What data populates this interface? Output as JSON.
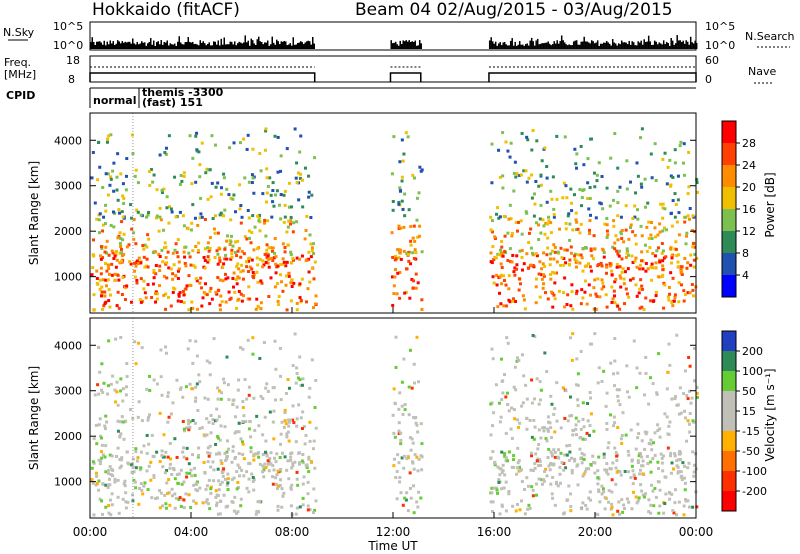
{
  "header": {
    "station": "Hokkaido (fitACF)",
    "beam_info": "Beam 04 02/Aug/2015 - 03/Aug/2015"
  },
  "top_panels": {
    "nsky_label": "N.Sky",
    "nsky_top_tick": "10^5",
    "nsky_bottom_tick": "10^0",
    "nsearch_label": "N.Search",
    "nsearch_top_tick": "10^5",
    "nsearch_bottom_tick": "10^0",
    "freq_label_line1": "Freq.",
    "freq_label_line2": "[MHz]",
    "freq_top_tick": "18",
    "freq_bottom_tick": "8",
    "nave_label": "Nave",
    "nave_top_tick": "60",
    "nave_bottom_tick": "0",
    "cpid_label": "CPID",
    "cpid_mode_1": "normal",
    "cpid_mode_2_line1": "themis -3300",
    "cpid_mode_2_line2": "(fast) 151"
  },
  "axes": {
    "x_label": "Time UT",
    "x_ticks": [
      "00:00",
      "04:00",
      "08:00",
      "12:00",
      "16:00",
      "20:00",
      "00:00"
    ],
    "y_label": "Slant Range [km]",
    "y_ticks": [
      "1000",
      "2000",
      "3000",
      "4000"
    ]
  },
  "colorbars": {
    "power": {
      "label": "Power [dB]",
      "ticks": [
        "4",
        "8",
        "12",
        "16",
        "20",
        "24",
        "28"
      ],
      "colors": [
        "#0000ff",
        "#2050b0",
        "#2e8b57",
        "#7cc050",
        "#f0c000",
        "#ff8c00",
        "#ff4000",
        "#ff0000"
      ]
    },
    "velocity": {
      "label": "Velocity [m s⁻¹]",
      "ticks": [
        "200",
        "100",
        "50",
        "15",
        "-15",
        "-50",
        "-100",
        "-200"
      ],
      "colors": [
        "#2040c0",
        "#2e8b57",
        "#66cc33",
        "#c0c0b8",
        "#c0c0b8",
        "#ffb000",
        "#ff7000",
        "#ff3000",
        "#ff0000"
      ]
    }
  },
  "chart_data": {
    "type": "heatmap",
    "title": "Hokkaido (fitACF)",
    "xlabel": "Time UT",
    "ylabel": "Slant Range [km]",
    "xlim_hours": [
      0,
      24
    ],
    "ylim_km": [
      200,
      4600
    ],
    "data_gaps_hours": [
      [
        8.9,
        11.9
      ],
      [
        13.1,
        15.8
      ]
    ],
    "cpid_change_hour": 1.7
  }
}
